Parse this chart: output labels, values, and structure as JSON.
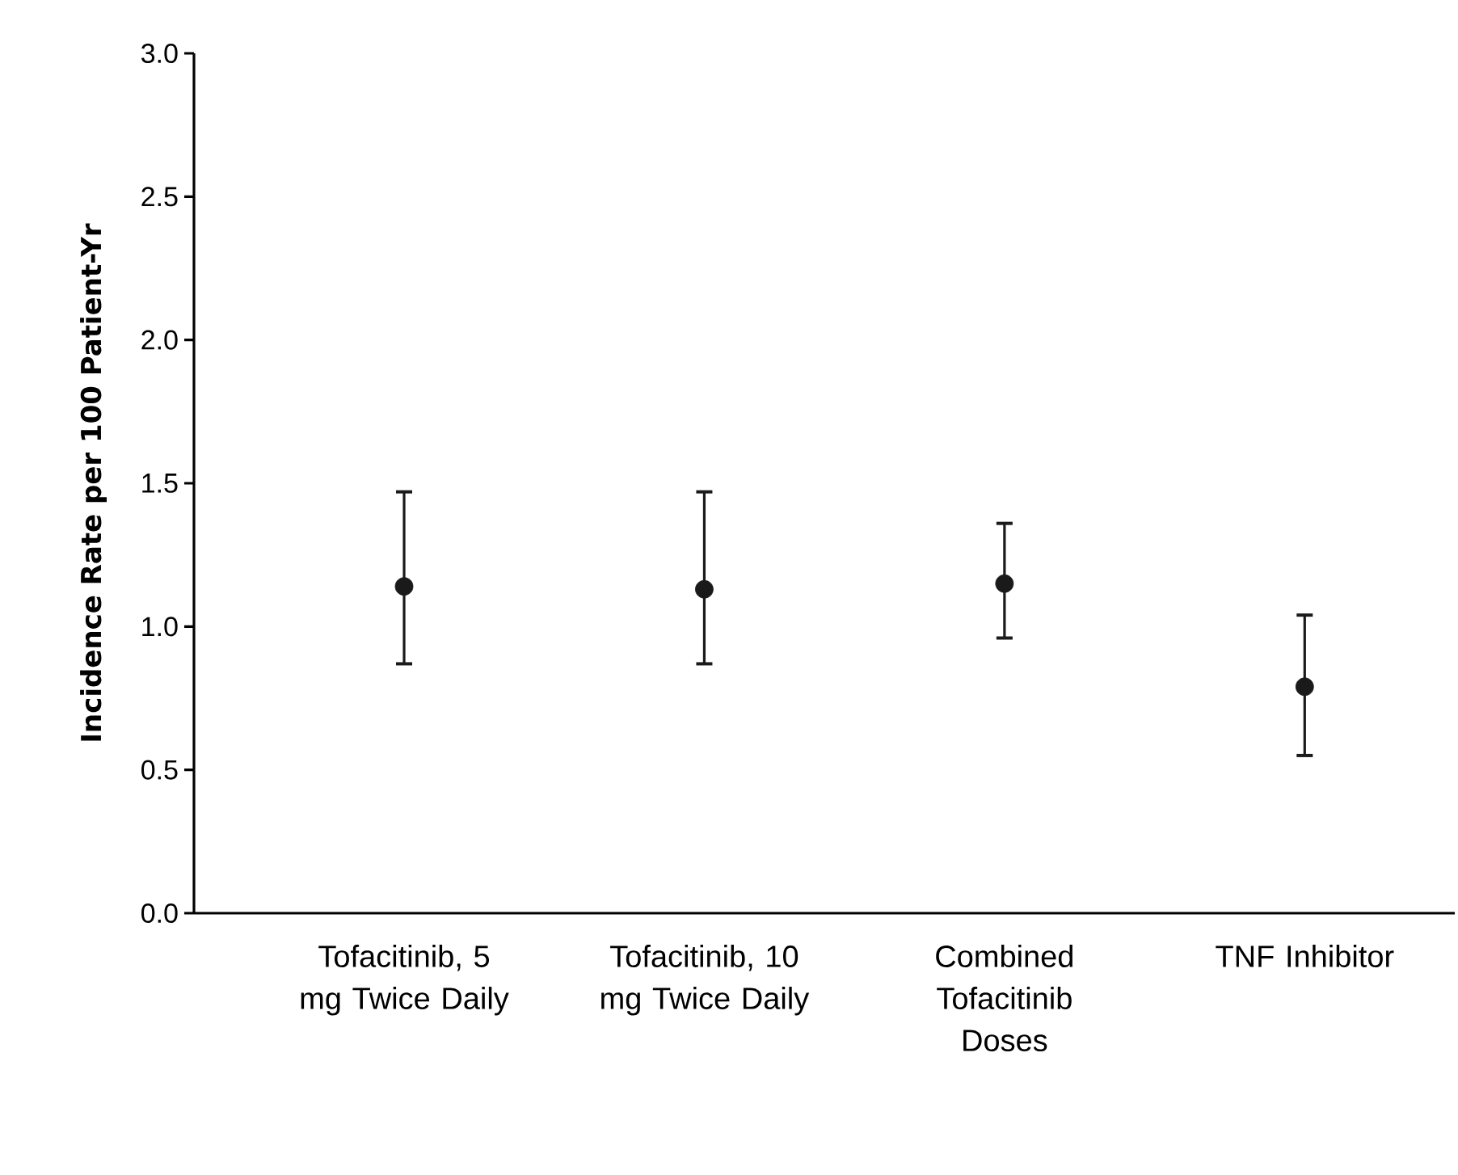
{
  "chart_data": {
    "type": "scatter",
    "ylabel": "Incidence Rate per 100 Patient-Yr",
    "categories": [
      "Tofacitinib, 5 mg Twice Daily",
      "Tofacitinib, 10 mg Twice Daily",
      "Combined Tofacitinib Doses",
      "TNF Inhibitor"
    ],
    "series": [
      {
        "color": "#1a1a1a",
        "values": [
          1.14,
          1.13,
          1.15,
          0.79
        ],
        "errors": [
          [
            0.87,
            1.47
          ],
          [
            0.87,
            1.47
          ],
          [
            0.96,
            1.36
          ],
          [
            0.55,
            1.04
          ]
        ]
      }
    ],
    "ylim": [
      0,
      3
    ],
    "yticks": [
      {
        "value": 0,
        "label": "0.0"
      },
      {
        "value": 0.5,
        "label": "0.5"
      },
      {
        "value": 1,
        "label": "1.0"
      },
      {
        "value": 1.5,
        "label": "1.5"
      },
      {
        "value": 2,
        "label": "2.0"
      },
      {
        "value": 2.5,
        "label": "2.5"
      },
      {
        "value": 3,
        "label": "3.0"
      }
    ],
    "marker": "circle",
    "grid": false
  }
}
